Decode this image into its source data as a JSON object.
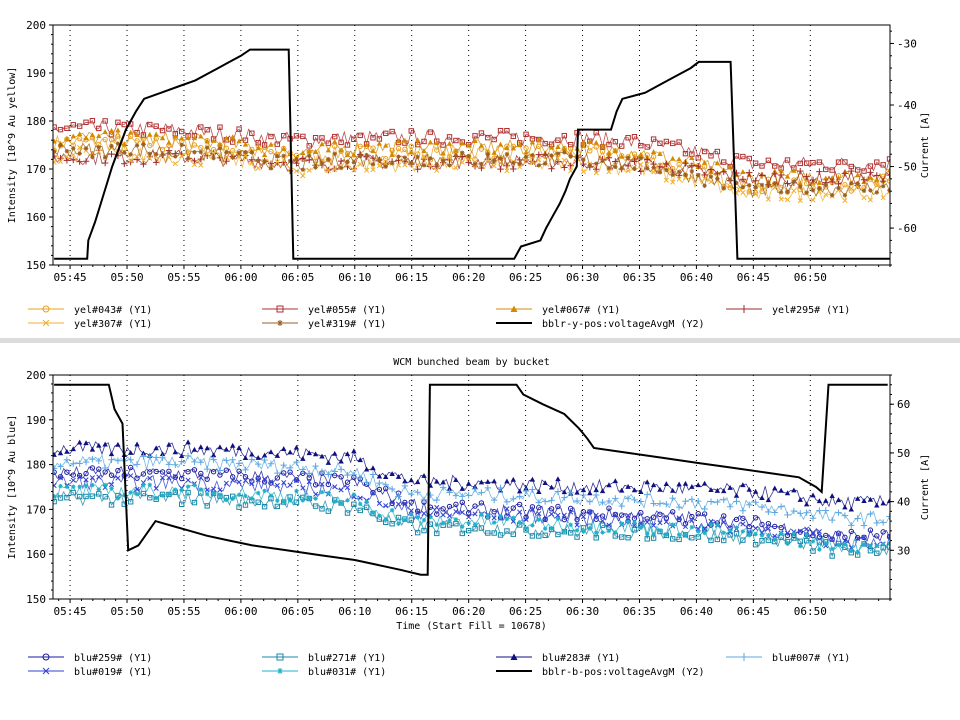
{
  "chart_data": [
    {
      "type": "line",
      "title": "",
      "xlabel": "",
      "ylabel": "Intensity [10^9 Au yellow]",
      "y2label": "Current [A]",
      "ylim": [
        150,
        200
      ],
      "y2lim": [
        -66,
        -27
      ],
      "yticks": [
        150,
        160,
        170,
        180,
        190,
        200
      ],
      "y2ticks": [
        -60,
        -50,
        -40,
        -30
      ],
      "xticks": [
        "05:45",
        "05:50",
        "05:55",
        "06:00",
        "06:05",
        "06:10",
        "06:15",
        "06:20",
        "06:25",
        "06:30",
        "06:35",
        "06:40",
        "06:45",
        "06:50"
      ],
      "xlim_minutes": [
        343.5,
        417
      ],
      "grid": "vertical-dotted",
      "legend_position": "bottom",
      "series": [
        {
          "name": "yel#043# (Y1)",
          "axis": "y1",
          "color": "#e8a020",
          "marker": "circle",
          "x": [
            345,
            350,
            355,
            360,
            365,
            370,
            375,
            380,
            385,
            390,
            395,
            400,
            405,
            410,
            416
          ],
          "values": [
            175.5,
            175.5,
            175,
            174,
            172.5,
            173.5,
            173.5,
            173.5,
            173.5,
            173.5,
            172.5,
            169.5,
            166,
            167,
            167
          ]
        },
        {
          "name": "yel#055# (Y1)",
          "axis": "y1",
          "color": "#b03030",
          "marker": "square",
          "x": [
            345,
            350,
            355,
            360,
            365,
            370,
            375,
            380,
            385,
            390,
            395,
            400,
            405,
            410,
            416
          ],
          "values": [
            178.5,
            178.5,
            178,
            177,
            176,
            176.5,
            176.5,
            176.5,
            176.5,
            176.5,
            175.5,
            173.5,
            171,
            171,
            171
          ]
        },
        {
          "name": "yel#067# (Y1)",
          "axis": "y1",
          "color": "#d48a00",
          "marker": "triangle",
          "x": [
            345,
            350,
            355,
            360,
            365,
            370,
            375,
            380,
            385,
            390,
            395,
            400,
            405,
            410,
            416
          ],
          "values": [
            176.5,
            176.5,
            176,
            175,
            173.5,
            174.5,
            174.5,
            174.5,
            174.5,
            174.5,
            173.5,
            171,
            168,
            168.5,
            168.5
          ]
        },
        {
          "name": "yel#295# (Y1)",
          "axis": "y1",
          "color": "#a02828",
          "marker": "plus",
          "x": [
            345,
            350,
            355,
            360,
            365,
            370,
            375,
            380,
            385,
            390,
            395,
            400,
            405,
            410,
            416
          ],
          "values": [
            172.5,
            172.5,
            172.5,
            172,
            171,
            171.5,
            171.5,
            171.5,
            171.5,
            171.5,
            171,
            169.5,
            168,
            168,
            168
          ]
        },
        {
          "name": "yel#307# (Y1)",
          "axis": "y1",
          "color": "#f0b030",
          "marker": "x",
          "x": [
            345,
            350,
            355,
            360,
            365,
            370,
            375,
            380,
            385,
            390,
            395,
            400,
            405,
            410,
            416
          ],
          "values": [
            173,
            173,
            172.5,
            171.5,
            170,
            171,
            171,
            171,
            171,
            171,
            170,
            167.5,
            164.5,
            165,
            165
          ]
        },
        {
          "name": "yel#319# (Y1)",
          "axis": "y1",
          "color": "#9a6020",
          "marker": "star",
          "x": [
            345,
            350,
            355,
            360,
            365,
            370,
            375,
            380,
            385,
            390,
            395,
            400,
            405,
            410,
            416
          ],
          "values": [
            174,
            174,
            173.5,
            172.5,
            171,
            172,
            172,
            172,
            172,
            172,
            171,
            168.5,
            165.5,
            166,
            166
          ]
        },
        {
          "name": "bblr-y-pos:voltageAvgM (Y2)",
          "axis": "y2",
          "color": "#000000",
          "marker": "none",
          "x": [
            343.6,
            346.5,
            346.6,
            347.2,
            347.7,
            348.2,
            348.7,
            349.3,
            349.9,
            350.8,
            351.5,
            353.0,
            354.5,
            356.0,
            357.0,
            358.0,
            359.0,
            360.0,
            360.8,
            363.2,
            364.2,
            364.6,
            365.5,
            369,
            374,
            379,
            384,
            384.6,
            386.3,
            386.8,
            387.4,
            388.0,
            388.5,
            388.9,
            389.5,
            389.6,
            392.5,
            393,
            393.5,
            395.5,
            396.5,
            397.5,
            398.5,
            399.5,
            400.2,
            402.3,
            403.0,
            403.6,
            417
          ],
          "values": [
            -65,
            -65,
            -62,
            -59,
            -56,
            -53,
            -50,
            -47,
            -44,
            -41,
            -39,
            -38,
            -37,
            -36,
            -35,
            -34,
            -33,
            -32,
            -31,
            -31,
            -31,
            -65,
            -65,
            -65,
            -65,
            -65,
            -65,
            -63,
            -62,
            -60,
            -58,
            -56,
            -54,
            -52,
            -50,
            -44,
            -44,
            -41,
            -39,
            -38,
            -37,
            -36,
            -35,
            -34,
            -33,
            -33,
            -33,
            -65,
            -65
          ]
        }
      ]
    },
    {
      "type": "line",
      "title": "WCM bunched beam by bucket",
      "xlabel": "Time (Start Fill = 10678)",
      "ylabel": "Intensity [10^9 Au blue]",
      "y2label": "Current [A]",
      "ylim": [
        150,
        200
      ],
      "y2lim": [
        20,
        66
      ],
      "yticks": [
        150,
        160,
        170,
        180,
        190,
        200
      ],
      "y2ticks": [
        30,
        40,
        50,
        60
      ],
      "xticks": [
        "05:45",
        "05:50",
        "05:55",
        "06:00",
        "06:05",
        "06:10",
        "06:15",
        "06:20",
        "06:25",
        "06:30",
        "06:35",
        "06:40",
        "06:45",
        "06:50"
      ],
      "xlim_minutes": [
        343.5,
        417
      ],
      "grid": "vertical-dotted",
      "legend_position": "bottom",
      "series": [
        {
          "name": "blu#259# (Y1)",
          "axis": "y1",
          "color": "#1a1aa0",
          "marker": "circle",
          "x": [
            345,
            350,
            355,
            360,
            365,
            370,
            372,
            374,
            376,
            378,
            380,
            385,
            390,
            395,
            400,
            405,
            410,
            412,
            416
          ],
          "values": [
            178,
            178,
            178,
            177.5,
            177,
            176,
            174,
            172,
            170.5,
            170,
            170,
            169.5,
            169,
            168.5,
            168,
            167,
            165,
            164,
            164
          ]
        },
        {
          "name": "blu#271# (Y1)",
          "axis": "y1",
          "color": "#1888a8",
          "marker": "square",
          "x": [
            345,
            350,
            355,
            360,
            365,
            370,
            372,
            374,
            376,
            378,
            380,
            385,
            390,
            395,
            400,
            405,
            410,
            412,
            416
          ],
          "values": [
            172.5,
            172.5,
            172.5,
            172,
            171.5,
            170.5,
            168.5,
            166.5,
            166,
            166,
            166,
            165.5,
            165,
            165,
            164.5,
            163.5,
            162,
            161,
            161
          ]
        },
        {
          "name": "blu#283# (Y1)",
          "axis": "y1",
          "color": "#101080",
          "marker": "triangle",
          "x": [
            345,
            350,
            355,
            360,
            365,
            370,
            372,
            374,
            376,
            378,
            380,
            385,
            390,
            395,
            400,
            405,
            410,
            412,
            416
          ],
          "values": [
            183.5,
            183.5,
            183.5,
            183,
            182.5,
            181.5,
            179,
            177,
            176,
            176,
            176,
            175.5,
            175,
            175,
            174.5,
            174,
            172.5,
            171.5,
            171.5
          ]
        },
        {
          "name": "blu#007# (Y1)",
          "axis": "y1",
          "color": "#5aa8e0",
          "marker": "plus",
          "x": [
            345,
            350,
            355,
            360,
            365,
            370,
            372,
            374,
            376,
            378,
            380,
            385,
            390,
            395,
            400,
            405,
            410,
            412,
            416
          ],
          "values": [
            180.5,
            180.5,
            180.5,
            180,
            179.5,
            178.5,
            176,
            174,
            173.5,
            173.5,
            173.5,
            173,
            172.5,
            172,
            171.5,
            171,
            169,
            168,
            168
          ]
        },
        {
          "name": "blu#019# (Y1)",
          "axis": "y1",
          "color": "#3040d0",
          "marker": "x",
          "x": [
            345,
            350,
            355,
            360,
            365,
            370,
            372,
            374,
            376,
            378,
            380,
            385,
            390,
            395,
            400,
            405,
            410,
            412,
            416
          ],
          "values": [
            176,
            176,
            176,
            175.5,
            175,
            174,
            172,
            170,
            169,
            169,
            169,
            168.5,
            168,
            167.5,
            167,
            166,
            164,
            163,
            163
          ]
        },
        {
          "name": "blu#031# (Y1)",
          "axis": "y1",
          "color": "#20b0c8",
          "marker": "star",
          "x": [
            345,
            350,
            355,
            360,
            365,
            370,
            372,
            374,
            376,
            378,
            380,
            385,
            390,
            395,
            400,
            405,
            410,
            412,
            416
          ],
          "values": [
            174,
            174,
            174,
            173.5,
            173,
            172,
            170,
            168,
            167.5,
            167.5,
            167.5,
            167,
            166.5,
            166,
            165.5,
            164.5,
            163,
            162,
            162
          ]
        },
        {
          "name": "bblr-b-pos:voltageAvgM (Y2)",
          "axis": "y2",
          "color": "#000000",
          "marker": "none",
          "x": [
            343.6,
            348.4,
            348.9,
            349.6,
            350.1,
            351,
            352.5,
            354,
            355.5,
            357,
            359,
            361,
            364,
            367,
            370,
            372,
            374,
            375.8,
            376.4,
            376.6,
            384.2,
            384.8,
            386.5,
            388.4,
            389.7,
            390.4,
            391.0,
            394,
            397,
            400,
            403,
            406,
            409,
            410.5,
            411.0,
            411.6,
            416.8
          ],
          "values": [
            64,
            64,
            59,
            56,
            30,
            31,
            36,
            35,
            34,
            33,
            32,
            31,
            30,
            29,
            28,
            27,
            26,
            25,
            25,
            64,
            64,
            62,
            60,
            58,
            55,
            53,
            51,
            50,
            49,
            48,
            47,
            46,
            45,
            43,
            42,
            64,
            64
          ]
        }
      ]
    }
  ],
  "legend_top": [
    {
      "label": "yel#043# (Y1)",
      "color": "#e8a020",
      "marker": "circle"
    },
    {
      "label": "yel#055# (Y1)",
      "color": "#b03030",
      "marker": "square"
    },
    {
      "label": "yel#067# (Y1)",
      "color": "#d48a00",
      "marker": "triangle"
    },
    {
      "label": "yel#295# (Y1)",
      "color": "#a02828",
      "marker": "plus"
    },
    {
      "label": "yel#307# (Y1)",
      "color": "#f0b030",
      "marker": "x"
    },
    {
      "label": "yel#319# (Y1)",
      "color": "#9a6020",
      "marker": "star"
    },
    {
      "label": "bblr-y-pos:voltageAvgM (Y2)",
      "color": "#000000",
      "marker": "line"
    }
  ],
  "legend_bottom": [
    {
      "label": "blu#259# (Y1)",
      "color": "#1a1aa0",
      "marker": "circle"
    },
    {
      "label": "blu#271# (Y1)",
      "color": "#1888a8",
      "marker": "square"
    },
    {
      "label": "blu#283# (Y1)",
      "color": "#101080",
      "marker": "triangle"
    },
    {
      "label": "blu#007# (Y1)",
      "color": "#5aa8e0",
      "marker": "plus"
    },
    {
      "label": "blu#019# (Y1)",
      "color": "#3040d0",
      "marker": "x"
    },
    {
      "label": "blu#031# (Y1)",
      "color": "#20b0c8",
      "marker": "star"
    },
    {
      "label": "bblr-b-pos:voltageAvgM (Y2)",
      "color": "#000000",
      "marker": "line"
    }
  ],
  "colors": {
    "separator": "#dcdcdc"
  }
}
